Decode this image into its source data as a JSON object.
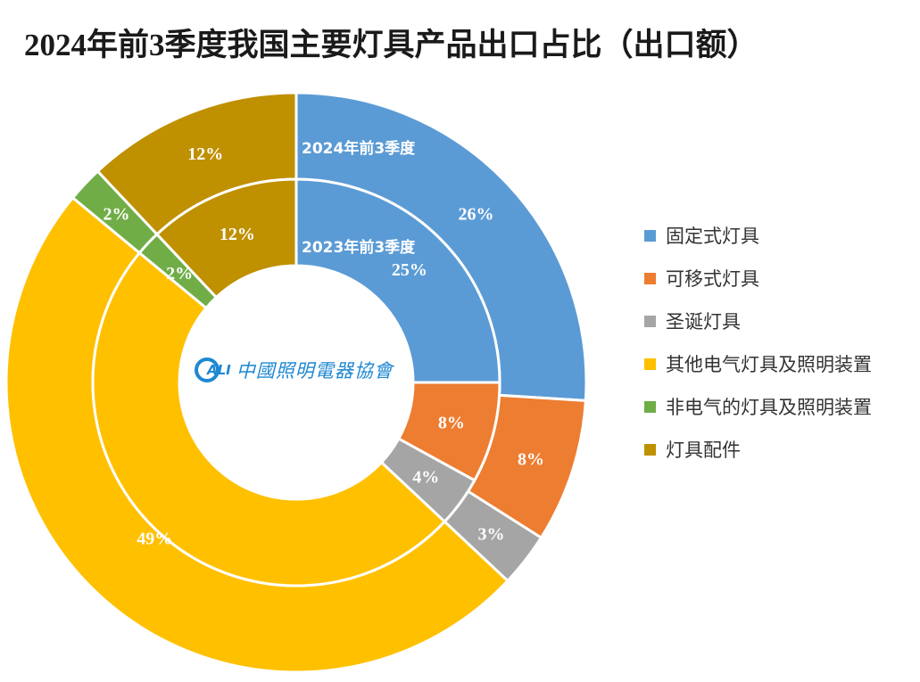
{
  "title": "2024年前3季度我国主要灯具产品出口占比（出口额）",
  "logo": {
    "mark": "ALI",
    "text": "中國照明電器協會"
  },
  "legend": [
    {
      "label": "固定式灯具",
      "color": "#5b9bd5"
    },
    {
      "label": "可移式灯具",
      "color": "#ed7d31"
    },
    {
      "label": "圣诞灯具",
      "color": "#a5a5a5"
    },
    {
      "label": "其他电气灯具及照明装置",
      "color": "#ffc000"
    },
    {
      "label": "非电气的灯具及照明装置",
      "color": "#70ad47"
    },
    {
      "label": "灯具配件",
      "color": "#bf9000"
    }
  ],
  "series_labels": {
    "outer": "2024年前3季度",
    "inner": "2023年前3季度"
  },
  "chart_data": {
    "type": "pie",
    "subtype": "doughnut",
    "title": "2024年前3季度我国主要灯具产品出口占比（出口额）",
    "categories": [
      "固定式灯具",
      "可移式灯具",
      "圣诞灯具",
      "其他电气灯具及照明装置",
      "非电气的灯具及照明装置",
      "灯具配件"
    ],
    "colors": [
      "#5b9bd5",
      "#ed7d31",
      "#a5a5a5",
      "#ffc000",
      "#70ad47",
      "#bf9000"
    ],
    "series": [
      {
        "name": "2024年前3季度",
        "ring": "outer",
        "values": [
          26,
          8,
          3,
          49,
          2,
          12
        ],
        "labels": [
          "26%",
          "8%",
          "3%",
          "49%",
          "2%",
          "12%"
        ]
      },
      {
        "name": "2023年前3季度",
        "ring": "inner",
        "values": [
          25,
          8,
          4,
          49,
          2,
          12
        ],
        "labels": [
          "25%",
          "8%",
          "4%",
          "49%",
          "2%",
          "12%"
        ]
      }
    ],
    "unit": "%",
    "legend_position": "right",
    "start_angle": "12 o'clock, clockwise"
  }
}
